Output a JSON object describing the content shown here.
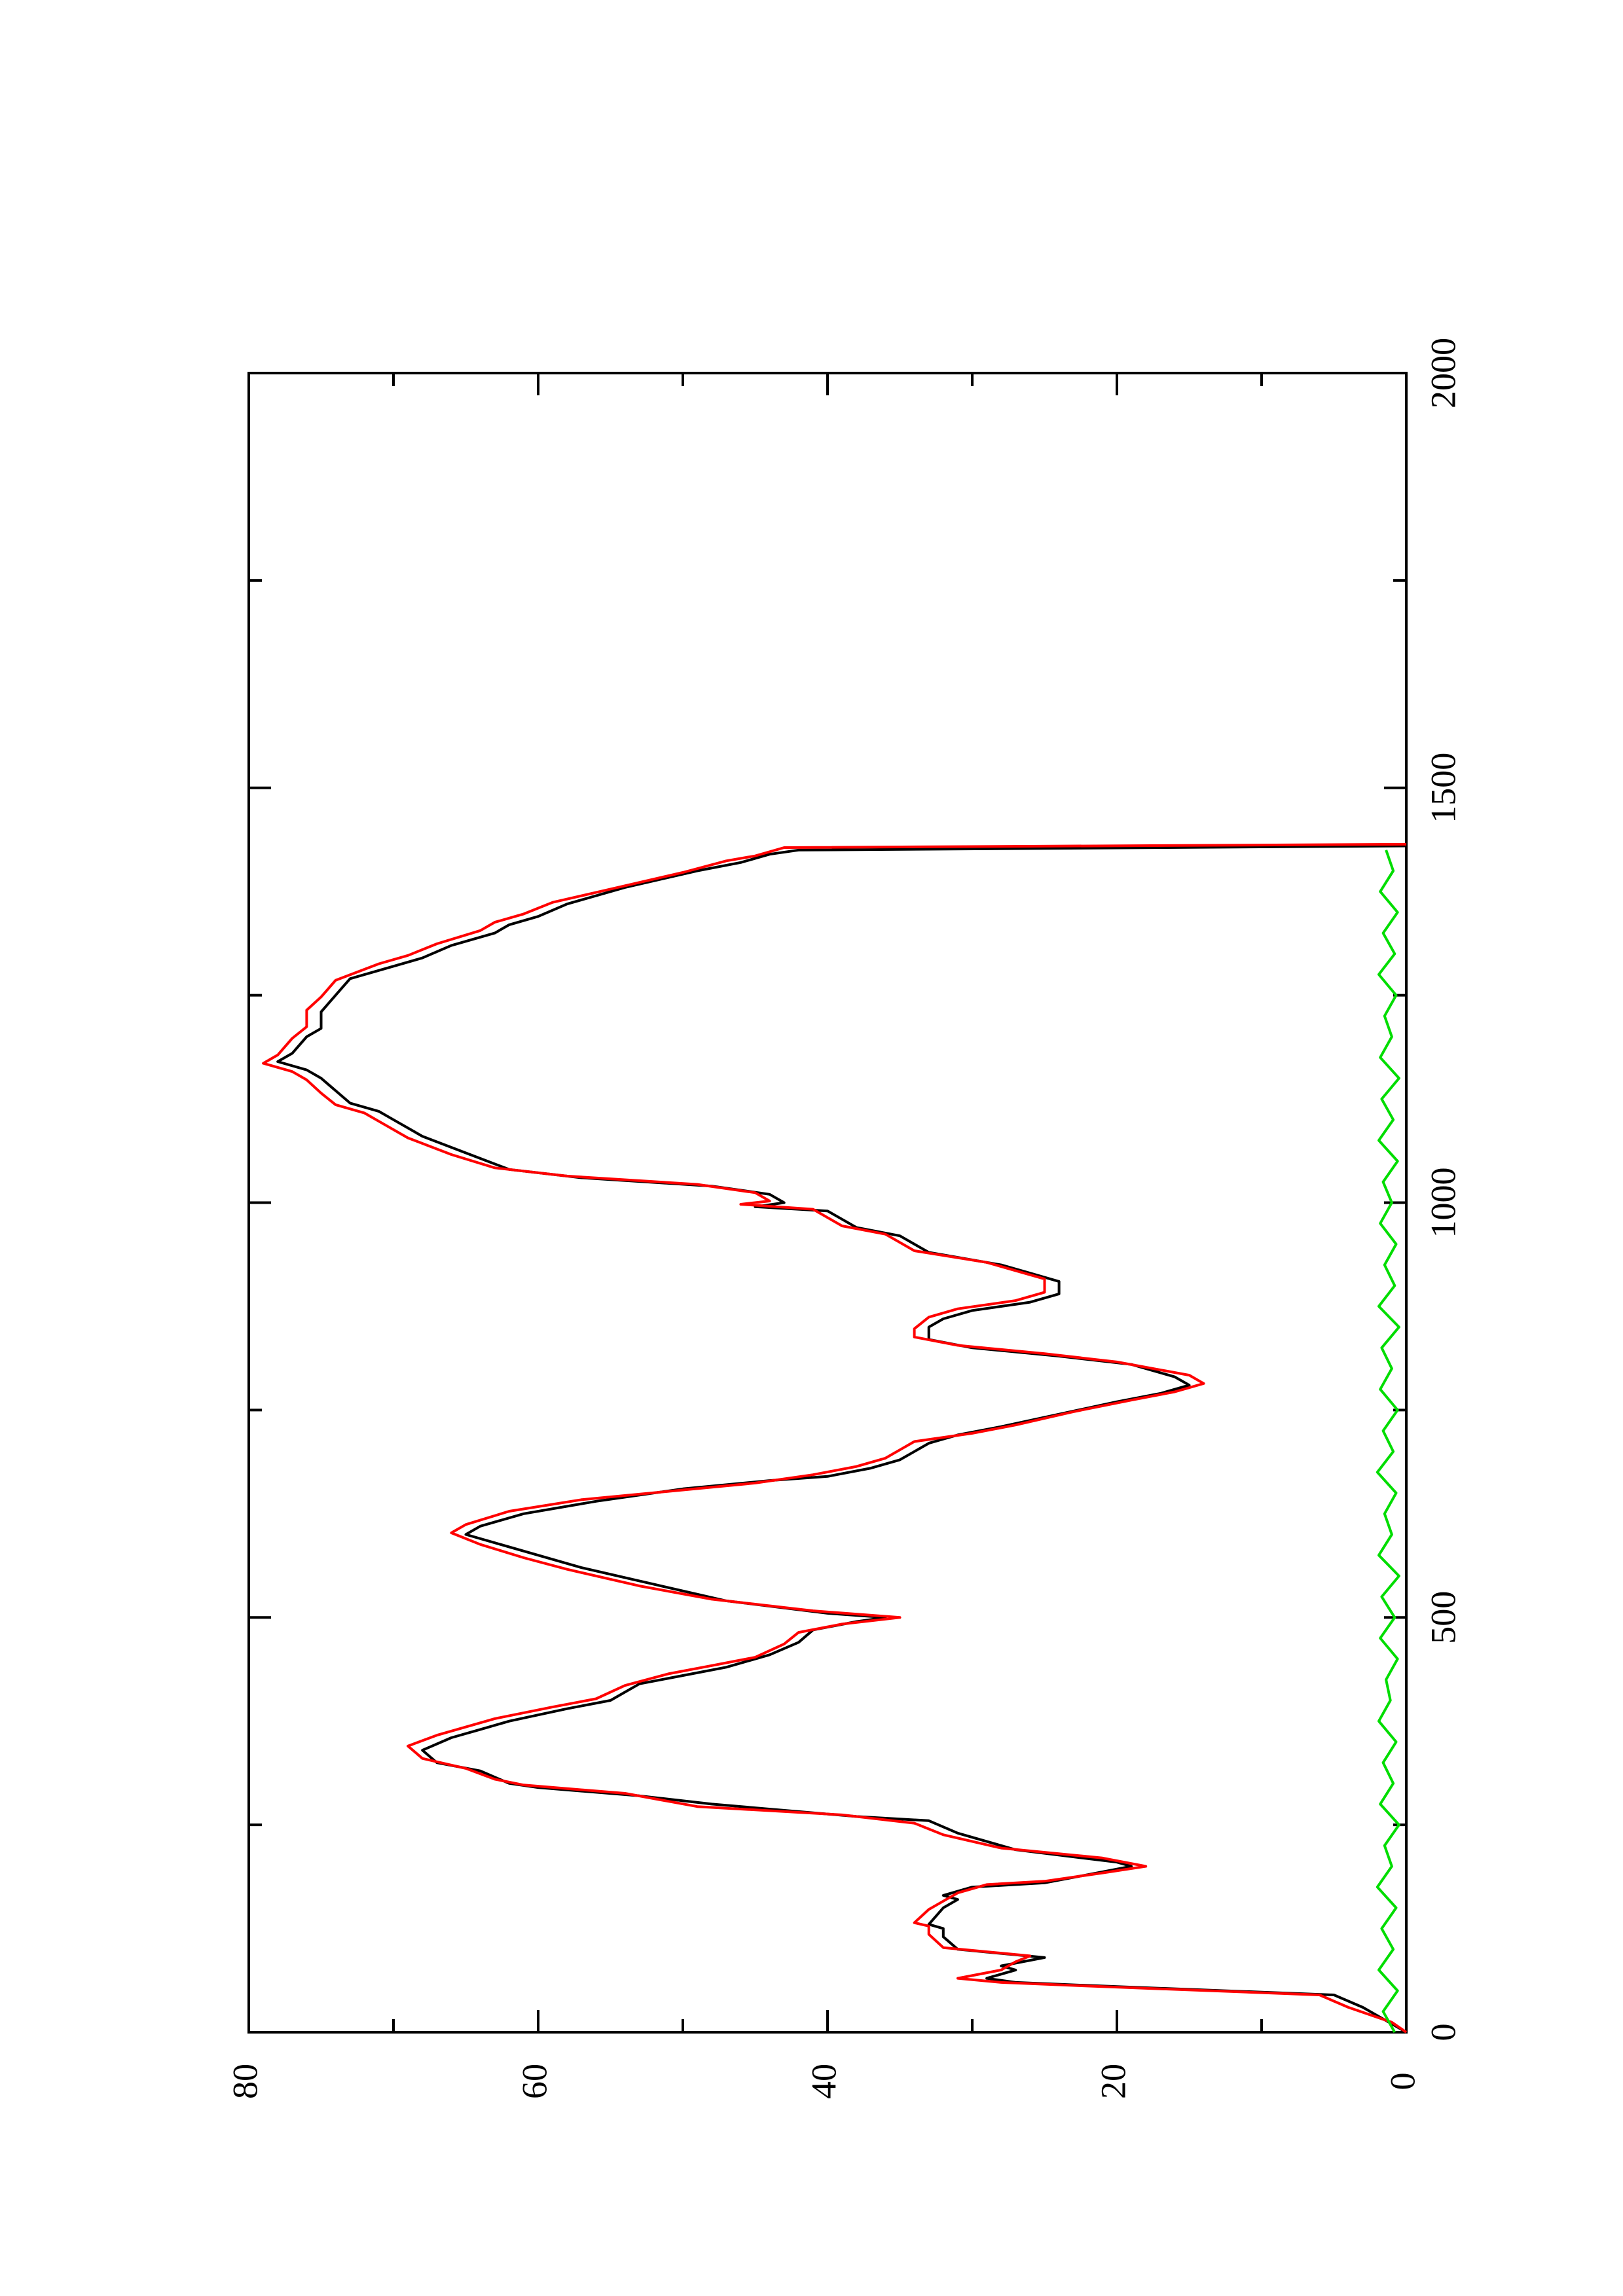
{
  "chart_data": {
    "type": "line",
    "title": "",
    "xlabel": "",
    "ylabel": "",
    "orientation": "rotated 90 degrees counter-clockwise (page in landscape); x axis runs bottom-to-top along the right side, y axis runs right-to-left along the bottom",
    "xlim": [
      0,
      2000
    ],
    "ylim": [
      0,
      80
    ],
    "x_ticks": [
      "0",
      "500",
      "1000",
      "1500",
      "2000"
    ],
    "y_ticks": [
      "0",
      "20",
      "40",
      "60",
      "80"
    ],
    "grid": false,
    "legend": "none",
    "series": [
      {
        "color": "#000000",
        "points": [
          [
            0,
            0
          ],
          [
            10,
            1
          ],
          [
            30,
            3
          ],
          [
            45,
            5
          ],
          [
            55,
            20
          ],
          [
            60,
            27
          ],
          [
            65,
            29
          ],
          [
            75,
            27
          ],
          [
            80,
            28
          ],
          [
            90,
            25
          ],
          [
            100,
            31
          ],
          [
            115,
            32
          ],
          [
            125,
            32
          ],
          [
            130,
            33
          ],
          [
            150,
            32
          ],
          [
            160,
            31
          ],
          [
            165,
            32
          ],
          [
            175,
            30
          ],
          [
            180,
            25
          ],
          [
            190,
            22
          ],
          [
            200,
            19
          ],
          [
            205,
            20
          ],
          [
            220,
            27
          ],
          [
            240,
            31
          ],
          [
            255,
            33
          ],
          [
            260,
            38
          ],
          [
            275,
            48
          ],
          [
            285,
            53
          ],
          [
            295,
            60
          ],
          [
            300,
            62
          ],
          [
            315,
            64
          ],
          [
            325,
            67
          ],
          [
            340,
            68
          ],
          [
            355,
            66
          ],
          [
            365,
            64
          ],
          [
            375,
            62
          ],
          [
            390,
            58
          ],
          [
            400,
            55
          ],
          [
            420,
            53
          ],
          [
            430,
            50
          ],
          [
            440,
            47
          ],
          [
            455,
            44
          ],
          [
            470,
            42
          ],
          [
            485,
            41
          ],
          [
            495,
            38
          ],
          [
            500,
            36
          ],
          [
            505,
            40
          ],
          [
            520,
            47
          ],
          [
            540,
            52
          ],
          [
            560,
            57
          ],
          [
            575,
            60
          ],
          [
            590,
            63
          ],
          [
            600,
            65
          ],
          [
            610,
            64
          ],
          [
            625,
            61
          ],
          [
            640,
            56
          ],
          [
            655,
            50
          ],
          [
            665,
            44
          ],
          [
            670,
            40
          ],
          [
            680,
            37
          ],
          [
            690,
            35
          ],
          [
            700,
            34
          ],
          [
            710,
            33
          ],
          [
            715,
            32
          ],
          [
            720,
            31
          ],
          [
            730,
            28
          ],
          [
            745,
            24
          ],
          [
            760,
            20
          ],
          [
            770,
            17
          ],
          [
            780,
            15
          ],
          [
            790,
            16
          ],
          [
            805,
            19
          ],
          [
            815,
            24
          ],
          [
            825,
            30
          ],
          [
            835,
            33
          ],
          [
            850,
            33
          ],
          [
            860,
            32
          ],
          [
            870,
            30
          ],
          [
            880,
            26
          ],
          [
            890,
            24
          ],
          [
            905,
            24
          ],
          [
            915,
            26
          ],
          [
            925,
            28
          ],
          [
            940,
            33
          ],
          [
            950,
            34
          ],
          [
            960,
            35
          ],
          [
            970,
            38
          ],
          [
            980,
            39
          ],
          [
            990,
            40
          ],
          [
            995,
            45
          ],
          [
            1000,
            43
          ],
          [
            1010,
            44
          ],
          [
            1020,
            48
          ],
          [
            1030,
            57
          ],
          [
            1040,
            62
          ],
          [
            1060,
            65
          ],
          [
            1080,
            68
          ],
          [
            1100,
            70
          ],
          [
            1110,
            71
          ],
          [
            1120,
            73
          ],
          [
            1135,
            74
          ],
          [
            1150,
            75
          ],
          [
            1160,
            76
          ],
          [
            1170,
            78
          ],
          [
            1180,
            77
          ],
          [
            1200,
            76
          ],
          [
            1210,
            75
          ],
          [
            1230,
            75
          ],
          [
            1250,
            74
          ],
          [
            1270,
            73
          ],
          [
            1285,
            70
          ],
          [
            1295,
            68
          ],
          [
            1310,
            66
          ],
          [
            1325,
            63
          ],
          [
            1335,
            62
          ],
          [
            1345,
            60
          ],
          [
            1360,
            58
          ],
          [
            1380,
            54
          ],
          [
            1400,
            49
          ],
          [
            1410,
            46
          ],
          [
            1420,
            44
          ],
          [
            1425,
            42
          ],
          [
            1430,
            0
          ]
        ]
      },
      {
        "color": "#ff0000",
        "points": [
          [
            0,
            0
          ],
          [
            12,
            1
          ],
          [
            30,
            4
          ],
          [
            45,
            6
          ],
          [
            55,
            21
          ],
          [
            60,
            28
          ],
          [
            65,
            31
          ],
          [
            75,
            28
          ],
          [
            85,
            27
          ],
          [
            92,
            26
          ],
          [
            102,
            32
          ],
          [
            118,
            33
          ],
          [
            128,
            33
          ],
          [
            132,
            34
          ],
          [
            148,
            33
          ],
          [
            158,
            32
          ],
          [
            168,
            31
          ],
          [
            178,
            29
          ],
          [
            182,
            25
          ],
          [
            192,
            21
          ],
          [
            200,
            18
          ],
          [
            210,
            21
          ],
          [
            222,
            28
          ],
          [
            238,
            32
          ],
          [
            252,
            34
          ],
          [
            262,
            39
          ],
          [
            272,
            49
          ],
          [
            288,
            54
          ],
          [
            298,
            61
          ],
          [
            305,
            63
          ],
          [
            318,
            65
          ],
          [
            330,
            68
          ],
          [
            345,
            69
          ],
          [
            358,
            67
          ],
          [
            368,
            65
          ],
          [
            378,
            63
          ],
          [
            392,
            59
          ],
          [
            402,
            56
          ],
          [
            418,
            54
          ],
          [
            432,
            51
          ],
          [
            442,
            48
          ],
          [
            452,
            45
          ],
          [
            468,
            43
          ],
          [
            482,
            42
          ],
          [
            492,
            39
          ],
          [
            500,
            35
          ],
          [
            508,
            41
          ],
          [
            522,
            48
          ],
          [
            538,
            53
          ],
          [
            558,
            58
          ],
          [
            572,
            61
          ],
          [
            588,
            64
          ],
          [
            602,
            66
          ],
          [
            612,
            65
          ],
          [
            628,
            62
          ],
          [
            642,
            57
          ],
          [
            652,
            51
          ],
          [
            662,
            45
          ],
          [
            672,
            41
          ],
          [
            682,
            38
          ],
          [
            692,
            36
          ],
          [
            702,
            35
          ],
          [
            712,
            34
          ],
          [
            722,
            30
          ],
          [
            732,
            27
          ],
          [
            748,
            23
          ],
          [
            762,
            19
          ],
          [
            772,
            16
          ],
          [
            782,
            14
          ],
          [
            792,
            15
          ],
          [
            808,
            20
          ],
          [
            818,
            25
          ],
          [
            828,
            31
          ],
          [
            838,
            34
          ],
          [
            848,
            34
          ],
          [
            862,
            33
          ],
          [
            872,
            31
          ],
          [
            882,
            27
          ],
          [
            892,
            25
          ],
          [
            908,
            25
          ],
          [
            918,
            27
          ],
          [
            928,
            29
          ],
          [
            942,
            34
          ],
          [
            952,
            35
          ],
          [
            962,
            36
          ],
          [
            972,
            39
          ],
          [
            982,
            40
          ],
          [
            992,
            41
          ],
          [
            998,
            46
          ],
          [
            1002,
            44
          ],
          [
            1012,
            45
          ],
          [
            1022,
            49
          ],
          [
            1032,
            58
          ],
          [
            1042,
            63
          ],
          [
            1058,
            66
          ],
          [
            1078,
            69
          ],
          [
            1098,
            71
          ],
          [
            1108,
            72
          ],
          [
            1118,
            74
          ],
          [
            1132,
            75
          ],
          [
            1148,
            76
          ],
          [
            1158,
            77
          ],
          [
            1168,
            79
          ],
          [
            1178,
            78
          ],
          [
            1198,
            77
          ],
          [
            1212,
            76
          ],
          [
            1232,
            76
          ],
          [
            1248,
            75
          ],
          [
            1268,
            74
          ],
          [
            1288,
            71
          ],
          [
            1298,
            69
          ],
          [
            1312,
            67
          ],
          [
            1328,
            64
          ],
          [
            1338,
            63
          ],
          [
            1348,
            61
          ],
          [
            1362,
            59
          ],
          [
            1378,
            55
          ],
          [
            1398,
            50
          ],
          [
            1412,
            47
          ],
          [
            1418,
            45
          ],
          [
            1428,
            43
          ],
          [
            1432,
            0
          ]
        ]
      },
      {
        "color": "#00dd00",
        "points": [
          [
            0,
            0.8
          ],
          [
            25,
            1.6
          ],
          [
            50,
            0.6
          ],
          [
            75,
            1.9
          ],
          [
            100,
            0.9
          ],
          [
            125,
            1.7
          ],
          [
            150,
            0.7
          ],
          [
            175,
            2.0
          ],
          [
            200,
            1.0
          ],
          [
            225,
            1.5
          ],
          [
            250,
            0.5
          ],
          [
            275,
            1.8
          ],
          [
            300,
            0.9
          ],
          [
            325,
            1.6
          ],
          [
            350,
            0.7
          ],
          [
            375,
            1.9
          ],
          [
            400,
            1.1
          ],
          [
            425,
            1.4
          ],
          [
            450,
            0.6
          ],
          [
            475,
            1.8
          ],
          [
            500,
            0.8
          ],
          [
            525,
            1.7
          ],
          [
            550,
            0.5
          ],
          [
            575,
            1.9
          ],
          [
            600,
            1.0
          ],
          [
            625,
            1.5
          ],
          [
            650,
            0.7
          ],
          [
            675,
            2.0
          ],
          [
            700,
            0.9
          ],
          [
            725,
            1.6
          ],
          [
            750,
            0.6
          ],
          [
            775,
            1.8
          ],
          [
            800,
            1.0
          ],
          [
            825,
            1.7
          ],
          [
            850,
            0.5
          ],
          [
            875,
            1.9
          ],
          [
            900,
            0.8
          ],
          [
            925,
            1.5
          ],
          [
            950,
            0.7
          ],
          [
            975,
            1.8
          ],
          [
            1000,
            1.0
          ],
          [
            1025,
            1.6
          ],
          [
            1050,
            0.6
          ],
          [
            1075,
            1.9
          ],
          [
            1100,
            0.9
          ],
          [
            1125,
            1.7
          ],
          [
            1150,
            0.5
          ],
          [
            1175,
            1.8
          ],
          [
            1200,
            1.0
          ],
          [
            1225,
            1.5
          ],
          [
            1250,
            0.7
          ],
          [
            1275,
            1.9
          ],
          [
            1300,
            0.8
          ],
          [
            1325,
            1.6
          ],
          [
            1350,
            0.6
          ],
          [
            1375,
            1.8
          ],
          [
            1400,
            0.9
          ],
          [
            1425,
            1.4
          ]
        ]
      }
    ]
  }
}
